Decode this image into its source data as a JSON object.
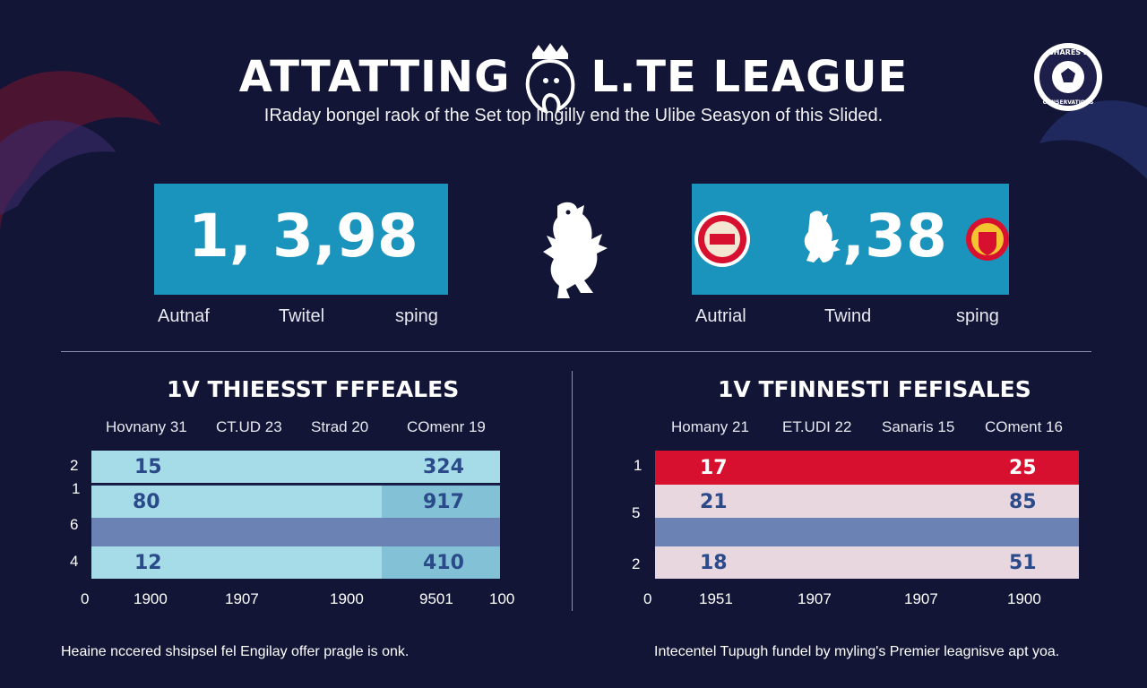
{
  "header": {
    "title_left": "ATTATTING",
    "title_right": "L.TE LEAGUE",
    "subtitle": "IRaday bongel raok of the Set top llngilly end the Ulibe Seasyon of this Slided."
  },
  "badge": {
    "text_top": "BHARES E",
    "text_bottom": "CONSERVATIONS"
  },
  "stats": {
    "left": {
      "value": "1, 3,98",
      "labels": [
        "Autnaf",
        "Twitel",
        "sping"
      ]
    },
    "right": {
      "value": ",38",
      "labels": [
        "Autrial",
        "Twind",
        "sping"
      ]
    }
  },
  "panels": {
    "left": {
      "title": "1V THIEESST FFFEALES",
      "columns": [
        "Hovnany 31",
        "CT.UD 23",
        "Strad 20",
        "COmenr 19"
      ],
      "rows": [
        {
          "idx": "2",
          "a": "15",
          "b": "324"
        },
        {
          "idx": "1",
          "a": "80",
          "b": "917"
        },
        {
          "idx": "6",
          "a": "",
          "b": ""
        },
        {
          "idx": "4",
          "a": "12",
          "b": "410"
        }
      ],
      "axis": [
        "0",
        "1900",
        "1907",
        "1900",
        "9501",
        "100"
      ]
    },
    "right": {
      "title": "1V TFINNESTI FEFISALES",
      "columns": [
        "Homany 21",
        "ET.UDI 22",
        "Sanaris 15",
        "COment 16"
      ],
      "rows": [
        {
          "idx": "1",
          "a": "17",
          "b": "25"
        },
        {
          "idx": "5",
          "a": "21",
          "b": "85"
        },
        {
          "idx": "",
          "a": "",
          "b": ""
        },
        {
          "idx": "2",
          "a": "18",
          "b": "51"
        }
      ],
      "axis": [
        "0",
        "1951",
        "1907",
        "1907",
        "1900"
      ]
    }
  },
  "footer": {
    "left": "Heaine nccered shsipsel fel Engilay offer pragle is onk.",
    "right": "Intecentel Tupugh fundel by myling's Premier leagnisve apt yoa."
  },
  "colors": {
    "background": "#121536",
    "stat_box": "#1a93bd",
    "left_row_light": "#a6dbe8",
    "left_row_dark": "#83c2d6",
    "band": "#6b83b4",
    "right_row_red": "#d8102f",
    "right_row_pink": "#e9d7e0"
  }
}
